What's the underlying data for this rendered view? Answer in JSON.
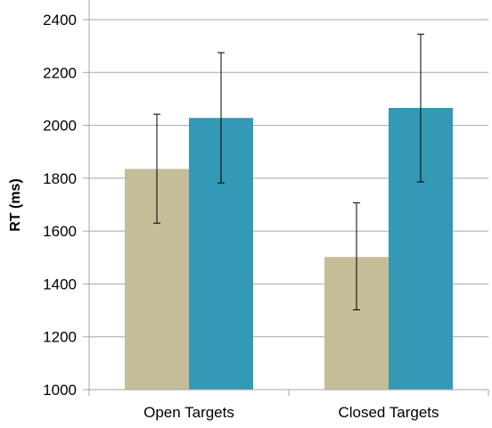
{
  "chart_data": {
    "type": "bar",
    "title": "",
    "xlabel": "",
    "ylabel": "RT (ms)",
    "ylim": [
      1000,
      2400
    ],
    "yticks": [
      1000,
      1200,
      1400,
      1600,
      1800,
      2000,
      2200,
      2400
    ],
    "grid": true,
    "legend": "none",
    "categories": [
      "Open Targets",
      "Closed Targets"
    ],
    "series": [
      {
        "color": "#c4bd97",
        "values": [
          1835,
          1502
        ],
        "error_low": [
          1630,
          1302
        ],
        "error_high": [
          2042,
          1707
        ]
      },
      {
        "color": "#3399b4",
        "values": [
          2028,
          2066
        ],
        "error_low": [
          1782,
          1786
        ],
        "error_high": [
          2275,
          2345
        ]
      }
    ]
  }
}
